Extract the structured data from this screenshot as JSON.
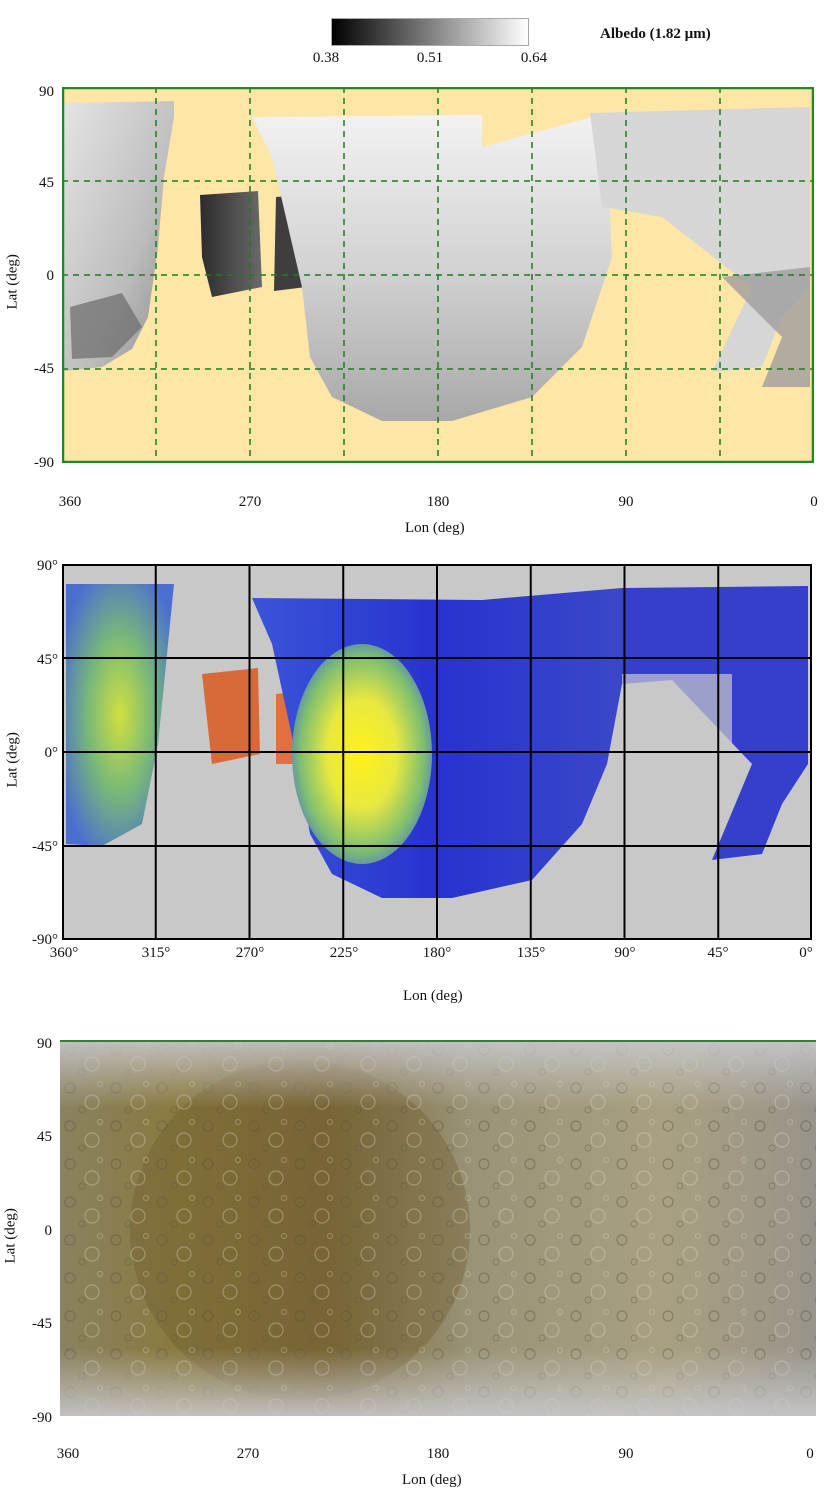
{
  "colorbar": {
    "title": "Albedo (1.82 µm)",
    "ticks": [
      "0.38",
      "0.51",
      "0.64"
    ]
  },
  "map1": {
    "ylabel": "Lat (deg)",
    "xlabel": "Lon (deg)",
    "yticks": [
      "90",
      "45",
      "0",
      "-45",
      "-90"
    ],
    "xticks": [
      "360",
      "270",
      "180",
      "90",
      "0"
    ],
    "background_color": "#fde6a6",
    "grid_color": "#1f7a1f"
  },
  "map2": {
    "ylabel": "Lat (deg)",
    "xlabel": "Lon (deg)",
    "yticks": [
      "90°",
      "45°",
      "0°",
      "-45°",
      "-90°"
    ],
    "xticks": [
      "360°",
      "315°",
      "270°",
      "225°",
      "180°",
      "135°",
      "90°",
      "45°",
      "0°"
    ],
    "background_color": "#c8c8c8",
    "grid_color": "#000000"
  },
  "map3": {
    "ylabel": "Lat (deg)",
    "xlabel": "Lon (deg)",
    "yticks": [
      "90",
      "45",
      "0",
      "-45",
      "-90"
    ],
    "xticks": [
      "360",
      "270",
      "180",
      "90",
      "0"
    ]
  }
}
